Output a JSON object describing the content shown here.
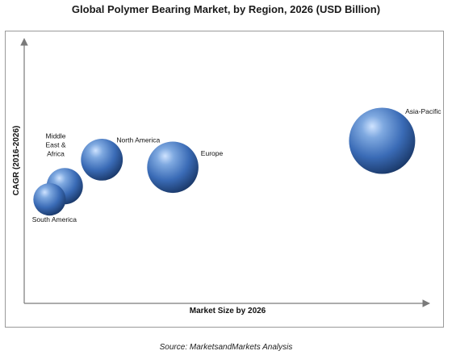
{
  "chart_data": {
    "type": "bubble",
    "title": "Global Polymer Bearing Market, by Region, 2026 (USD Billion)",
    "xlabel": "Market Size by 2026",
    "ylabel": "CAGR (2016-2026)",
    "grid": false,
    "series": [
      {
        "name": "Asia-Pacific",
        "label_lines": [
          "Asia-Pacific"
        ],
        "x": 10.6,
        "y": 8.6,
        "size": 10.0,
        "label_side": "top-right"
      },
      {
        "name": "Europe",
        "label_lines": [
          "Europe"
        ],
        "x": 4.4,
        "y": 7.2,
        "size": 6.0,
        "label_side": "right"
      },
      {
        "name": "North America",
        "label_lines": [
          "North America"
        ],
        "x": 2.3,
        "y": 7.6,
        "size": 4.0,
        "label_side": "top-right"
      },
      {
        "name": "Middle East & Africa",
        "label_lines": [
          "Middle",
          "East &",
          "Africa"
        ],
        "x": 1.2,
        "y": 6.2,
        "size": 3.0,
        "label_side": "top-left"
      },
      {
        "name": "South America",
        "label_lines": [
          "South America"
        ],
        "x": 0.75,
        "y": 5.5,
        "size": 2.4,
        "label_side": "bottom"
      }
    ]
  },
  "source": "Source: MarketsandMarkets Analysis"
}
